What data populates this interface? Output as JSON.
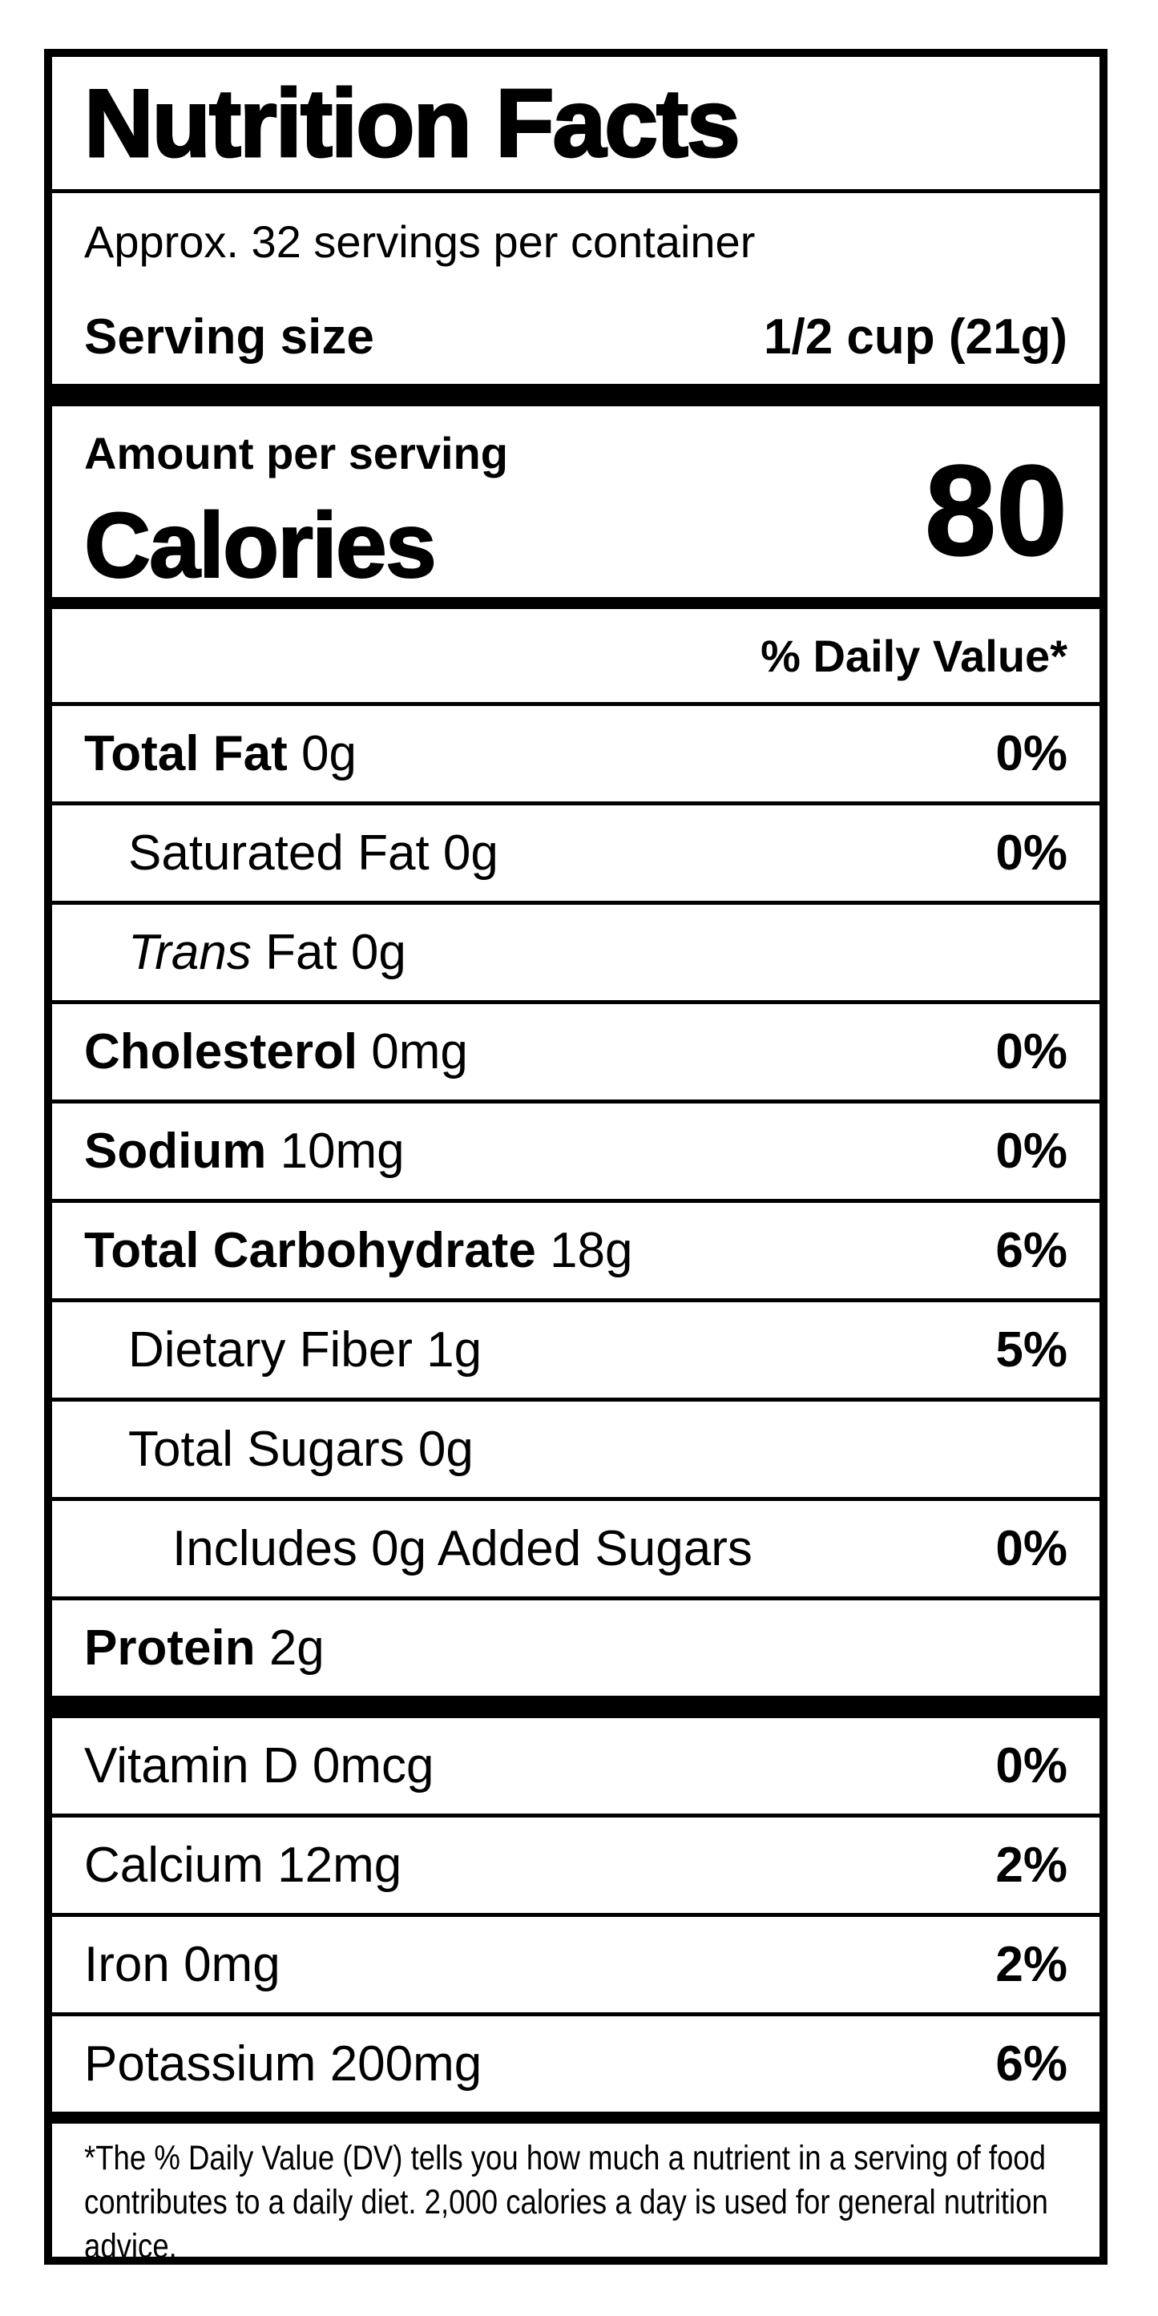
{
  "label": {
    "title": "Nutrition Facts",
    "servings_per_container": "Approx. 32 servings per container",
    "serving_size": {
      "label": "Serving size",
      "value": "1/2 cup (21g)"
    },
    "amount_per_serving": "Amount per serving",
    "calories": {
      "label": "Calories",
      "value": "80"
    },
    "daily_value_header": "% Daily Value*",
    "nutrients": [
      {
        "name": "Total Fat",
        "amount": "0g",
        "dv": "0%"
      },
      {
        "name": "Saturated Fat",
        "amount": "0g",
        "dv": "0%"
      },
      {
        "name": "Trans",
        "amount": "Fat 0g"
      },
      {
        "name": "Cholesterol",
        "amount": "0mg",
        "dv": "0%"
      },
      {
        "name": "Sodium",
        "amount": "10mg",
        "dv": "0%"
      },
      {
        "name": "Total Carbohydrate",
        "amount": "18g",
        "dv": "6%"
      },
      {
        "name": "Dietary Fiber",
        "amount": "1g",
        "dv": "5%"
      },
      {
        "name": "Total Sugars",
        "amount": "0g"
      },
      {
        "name": "Includes 0g Added Sugars",
        "amount": "",
        "dv": "0%"
      },
      {
        "name": "Protein",
        "amount": "2g"
      }
    ],
    "vitamins": [
      {
        "name": "Vitamin D",
        "amount": "0mcg",
        "dv": "0%"
      },
      {
        "name": "Calcium",
        "amount": "12mg",
        "dv": "2%"
      },
      {
        "name": "Iron",
        "amount": "0mg",
        "dv": "2%"
      },
      {
        "name": "Potassium",
        "amount": "200mg",
        "dv": "6%"
      }
    ],
    "footnote": "*The % Daily Value (DV) tells you how much a nutrient in a serving of food contributes to a daily diet. 2,000 calories a day is used for general nutrition advice.",
    "colors": {
      "ink": "#000000",
      "background": "#ffffff"
    }
  }
}
